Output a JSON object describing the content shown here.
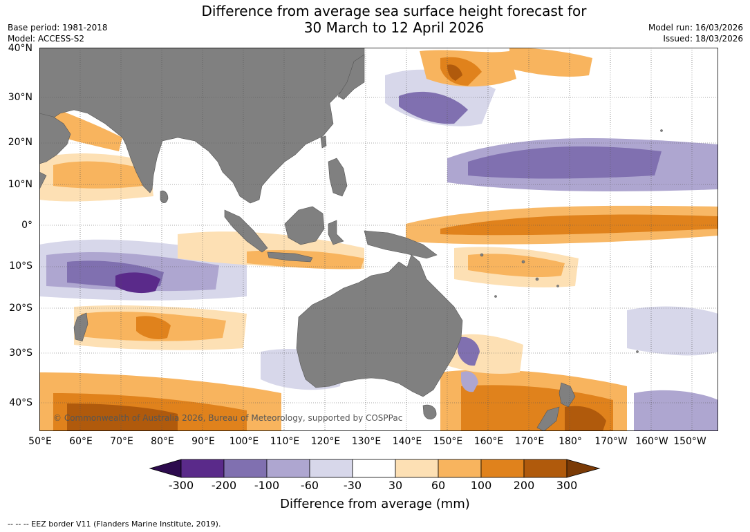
{
  "title": {
    "line1": "Difference from average sea surface height forecast for",
    "line2": "30 March to 12 April 2026"
  },
  "meta": {
    "base_period": "Base period: 1981-2018",
    "model": "Model: ACCESS-S2",
    "model_run": "Model run: 16/03/2026",
    "issued": "Issued: 18/03/2026"
  },
  "map": {
    "lat_labels": [
      "40°N",
      "30°N",
      "20°N",
      "10°N",
      "0°",
      "10°S",
      "20°S",
      "30°S",
      "40°S"
    ],
    "lon_labels": [
      "50°E",
      "60°E",
      "70°E",
      "80°E",
      "90°E",
      "100°E",
      "110°E",
      "120°E",
      "130°E",
      "140°E",
      "150°E",
      "160°E",
      "170°E",
      "180°",
      "170°W",
      "160°W",
      "150°W"
    ],
    "copyright": "© Commonwealth of Australia 2026, Bureau of Meteorology, supported by COSPPac",
    "land_color": "#808080",
    "ocean_color": "#ffffff",
    "grid_color": "#555555"
  },
  "colorbar": {
    "title": "Difference from average (mm)",
    "tick_labels": [
      "-300",
      "-200",
      "-100",
      "-60",
      "-30",
      "30",
      "60",
      "100",
      "200",
      "300"
    ],
    "colors": [
      "#2d0b4e",
      "#5a2a8a",
      "#8070b0",
      "#aea6d0",
      "#d7d7ea",
      "#ffffff",
      "#fde0b4",
      "#f8b45e",
      "#e0821c",
      "#b05a0c",
      "#7a3a06"
    ]
  },
  "footer": "--  --  -- EEZ border V11 (Flanders Marine Institute, 2019)."
}
